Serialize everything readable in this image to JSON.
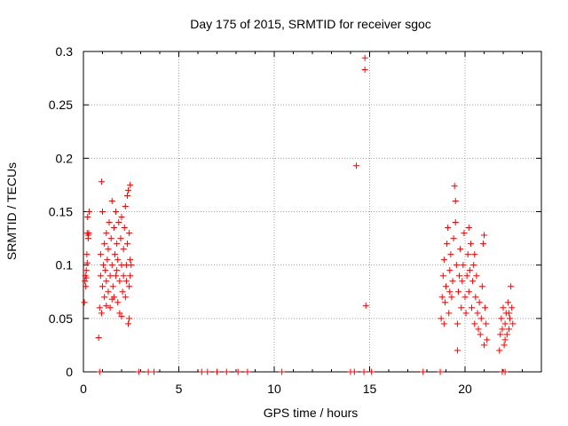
{
  "chart_data": {
    "type": "scatter",
    "title": "Day 175 of 2015, SRMTID for receiver sgoc",
    "xlabel": "GPS time / hours",
    "ylabel": "SRMTID / TECUs",
    "xlim": [
      0,
      24
    ],
    "ylim": [
      0,
      0.3
    ],
    "xticks": [
      0,
      5,
      10,
      15,
      20
    ],
    "xtick_labels": [
      "0",
      "5",
      "10",
      "15",
      "20"
    ],
    "yticks": [
      0,
      0.05,
      0.1,
      0.15,
      0.2,
      0.25,
      0.3
    ],
    "ytick_labels": [
      "0",
      "0.05",
      "0.1",
      "0.15",
      "0.2",
      "0.25",
      "0.3"
    ],
    "grid": true,
    "marker": "+",
    "color": "#ff0000",
    "series": [
      {
        "name": "SRMTID",
        "points": [
          [
            0.05,
            0.065
          ],
          [
            0.08,
            0.085
          ],
          [
            0.1,
            0.09
          ],
          [
            0.12,
            0.08
          ],
          [
            0.15,
            0.095
          ],
          [
            0.18,
            0.11
          ],
          [
            0.2,
            0.13
          ],
          [
            0.22,
            0.145
          ],
          [
            0.25,
            0.125
          ],
          [
            0.28,
            0.13
          ],
          [
            0.3,
            0.15
          ],
          [
            0.2,
            0.102
          ],
          [
            0.25,
            0.128
          ],
          [
            0.15,
            0.088
          ],
          [
            0.8,
            0.032
          ],
          [
            0.85,
            0.06
          ],
          [
            0.9,
            0.11
          ],
          [
            0.9,
            0.09
          ],
          [
            0.95,
            0.178
          ],
          [
            1.0,
            0.15
          ],
          [
            1.0,
            0.08
          ],
          [
            1.05,
            0.1
          ],
          [
            1.1,
            0.12
          ],
          [
            1.1,
            0.07
          ],
          [
            1.15,
            0.095
          ],
          [
            1.2,
            0.13
          ],
          [
            1.2,
            0.085
          ],
          [
            1.25,
            0.105
          ],
          [
            1.3,
            0.075
          ],
          [
            1.3,
            0.115
          ],
          [
            1.35,
            0.14
          ],
          [
            1.4,
            0.09
          ],
          [
            1.4,
            0.06
          ],
          [
            1.45,
            0.125
          ],
          [
            1.5,
            0.16
          ],
          [
            1.5,
            0.1
          ],
          [
            1.55,
            0.08
          ],
          [
            1.6,
            0.135
          ],
          [
            1.6,
            0.07
          ],
          [
            1.65,
            0.11
          ],
          [
            1.7,
            0.15
          ],
          [
            1.7,
            0.09
          ],
          [
            1.75,
            0.12
          ],
          [
            1.8,
            0.065
          ],
          [
            1.8,
            0.105
          ],
          [
            1.85,
            0.14
          ],
          [
            1.9,
            0.085
          ],
          [
            1.9,
            0.055
          ],
          [
            1.95,
            0.125
          ],
          [
            2.0,
            0.1
          ],
          [
            2.0,
            0.145
          ],
          [
            2.05,
            0.075
          ],
          [
            2.1,
            0.115
          ],
          [
            2.1,
            0.09
          ],
          [
            2.15,
            0.135
          ],
          [
            2.2,
            0.155
          ],
          [
            2.2,
            0.07
          ],
          [
            2.25,
            0.1
          ],
          [
            2.3,
            0.165
          ],
          [
            2.3,
            0.12
          ],
          [
            2.35,
            0.17
          ],
          [
            2.4,
            0.13
          ],
          [
            2.4,
            0.08
          ],
          [
            2.45,
            0.105
          ],
          [
            2.35,
            0.045
          ],
          [
            2.4,
            0.05
          ],
          [
            2.45,
            0.09
          ],
          [
            2.5,
            0.1
          ],
          [
            2.0,
            0.052
          ],
          [
            1.5,
            0.068
          ],
          [
            1.2,
            0.062
          ],
          [
            0.95,
            0.055
          ],
          [
            1.75,
            0.095
          ],
          [
            2.25,
            0.085
          ],
          [
            2.45,
            0.175
          ],
          [
            14.3,
            0.193
          ],
          [
            14.75,
            0.294
          ],
          [
            14.75,
            0.283
          ],
          [
            14.8,
            0.062
          ],
          [
            18.75,
            0.05
          ],
          [
            18.8,
            0.07
          ],
          [
            18.85,
            0.09
          ],
          [
            18.9,
            0.105
          ],
          [
            18.95,
            0.065
          ],
          [
            19.0,
            0.08
          ],
          [
            19.05,
            0.12
          ],
          [
            19.1,
            0.135
          ],
          [
            19.15,
            0.055
          ],
          [
            19.2,
            0.095
          ],
          [
            19.25,
            0.11
          ],
          [
            19.3,
            0.07
          ],
          [
            19.35,
            0.085
          ],
          [
            19.4,
            0.125
          ],
          [
            19.45,
            0.174
          ],
          [
            19.5,
            0.16
          ],
          [
            19.5,
            0.14
          ],
          [
            19.55,
            0.1
          ],
          [
            19.6,
            0.045
          ],
          [
            19.6,
            0.02
          ],
          [
            19.65,
            0.075
          ],
          [
            19.7,
            0.09
          ],
          [
            19.75,
            0.115
          ],
          [
            19.8,
            0.06
          ],
          [
            19.85,
            0.085
          ],
          [
            19.9,
            0.1
          ],
          [
            19.95,
            0.13
          ],
          [
            20.0,
            0.07
          ],
          [
            20.05,
            0.055
          ],
          [
            20.1,
            0.09
          ],
          [
            20.15,
            0.11
          ],
          [
            20.2,
            0.075
          ],
          [
            20.25,
            0.095
          ],
          [
            20.3,
            0.12
          ],
          [
            20.35,
            0.06
          ],
          [
            20.4,
            0.085
          ],
          [
            20.45,
            0.1
          ],
          [
            20.5,
            0.045
          ],
          [
            20.55,
            0.07
          ],
          [
            20.6,
            0.09
          ],
          [
            20.65,
            0.055
          ],
          [
            20.7,
            0.04
          ],
          [
            20.75,
            0.065
          ],
          [
            20.8,
            0.035
          ],
          [
            20.85,
            0.05
          ],
          [
            20.9,
            0.08
          ],
          [
            20.95,
            0.12
          ],
          [
            21.0,
            0.128
          ],
          [
            21.05,
            0.06
          ],
          [
            21.1,
            0.045
          ],
          [
            21.15,
            0.03
          ],
          [
            20.5,
            0.11
          ],
          [
            19.2,
            0.075
          ],
          [
            18.9,
            0.045
          ],
          [
            21.0,
            0.025
          ],
          [
            20.2,
            0.135
          ],
          [
            21.8,
            0.02
          ],
          [
            21.85,
            0.035
          ],
          [
            21.9,
            0.05
          ],
          [
            21.95,
            0.04
          ],
          [
            22.0,
            0.06
          ],
          [
            22.05,
            0.025
          ],
          [
            22.1,
            0.045
          ],
          [
            22.15,
            0.055
          ],
          [
            22.2,
            0.035
          ],
          [
            22.25,
            0.065
          ],
          [
            22.3,
            0.04
          ],
          [
            22.35,
            0.05
          ],
          [
            22.4,
            0.08
          ],
          [
            22.45,
            0.06
          ],
          [
            22.5,
            0.045
          ],
          [
            22.1,
            0.03
          ],
          [
            22.3,
            0.055
          ],
          [
            0.85,
            0
          ],
          [
            2.9,
            0
          ],
          [
            3.4,
            0
          ],
          [
            3.7,
            0
          ],
          [
            6.2,
            0
          ],
          [
            6.5,
            0
          ],
          [
            7.0,
            0
          ],
          [
            7.5,
            0
          ],
          [
            8.1,
            0
          ],
          [
            8.6,
            0
          ],
          [
            10.4,
            0
          ],
          [
            14.0,
            0
          ],
          [
            14.2,
            0
          ],
          [
            14.7,
            0
          ],
          [
            15.1,
            0
          ],
          [
            17.8,
            0
          ],
          [
            18.7,
            0
          ],
          [
            21.95,
            0
          ],
          [
            22.1,
            0
          ]
        ]
      }
    ]
  }
}
